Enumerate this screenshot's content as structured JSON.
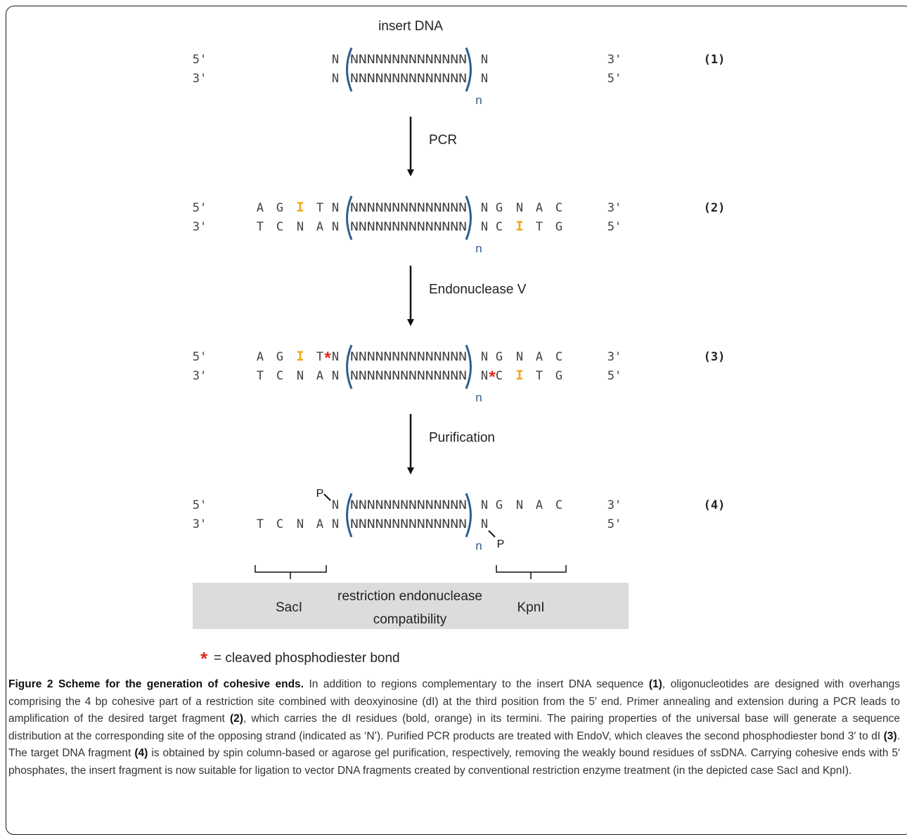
{
  "figure": {
    "title_top": "insert DNA",
    "end_labels": {
      "five_prime": "5'",
      "three_prime": "3'"
    },
    "stages": [
      {
        "label": "(1)",
        "top_strand": {
          "left": [],
          "cut_after_left": false,
          "flank": "N",
          "core": "NNNNNNNNNNNNNN",
          "right_flank": "N",
          "cut_before_right": false,
          "right": []
        },
        "bottom_strand": {
          "left": [],
          "cut_after_left": false,
          "flank": "N",
          "core": "NNNNNNNNNNNNNN",
          "right_flank": "N",
          "cut_before_right": false,
          "right": []
        }
      },
      {
        "label": "(2)",
        "top_strand": {
          "left": [
            "A",
            "G",
            "I",
            "T"
          ],
          "cut_after_left": false,
          "flank": "N",
          "core": "NNNNNNNNNNNNNN",
          "right_flank": "N",
          "cut_before_right": false,
          "right": [
            "G",
            "N",
            "A",
            "C"
          ]
        },
        "bottom_strand": {
          "left": [
            "T",
            "C",
            "N",
            "A"
          ],
          "cut_after_left": false,
          "flank": "N",
          "core": "NNNNNNNNNNNNNN",
          "right_flank": "N",
          "cut_before_right": false,
          "right": [
            "C",
            "I",
            "T",
            "G"
          ]
        }
      },
      {
        "label": "(3)",
        "top_strand": {
          "left": [
            "A",
            "G",
            "I",
            "T"
          ],
          "cut_after_left": true,
          "flank": "N",
          "core": "NNNNNNNNNNNNNN",
          "right_flank": "N",
          "cut_before_right": false,
          "right": [
            "G",
            "N",
            "A",
            "C"
          ]
        },
        "bottom_strand": {
          "left": [
            "T",
            "C",
            "N",
            "A"
          ],
          "cut_after_left": false,
          "flank": "N",
          "core": "NNNNNNNNNNNNNN",
          "right_flank": "N",
          "cut_before_right": true,
          "right": [
            "C",
            "I",
            "T",
            "G"
          ]
        }
      },
      {
        "label": "(4)",
        "top_strand": {
          "left": [],
          "cut_after_left": false,
          "flank": "N",
          "core": "NNNNNNNNNNNNNN",
          "right_flank": "N",
          "cut_before_right": false,
          "right": [
            "G",
            "N",
            "A",
            "C"
          ],
          "phosphate": "P"
        },
        "bottom_strand": {
          "left": [
            "T",
            "C",
            "N",
            "A"
          ],
          "cut_after_left": false,
          "flank": "N",
          "core": "NNNNNNNNNNNNNN",
          "right_flank": "N",
          "cut_before_right": false,
          "right": [],
          "phosphate": "P"
        }
      }
    ],
    "repeat_subscript": "n",
    "steps": [
      "PCR",
      "Endonuclease V",
      "Purification"
    ],
    "compatibility_box": {
      "left": "SacI",
      "center_line1": "restriction endonuclease",
      "center_line2": "compatibility",
      "right": "KpnI"
    },
    "legend": {
      "symbol": "*",
      "text": "= cleaved phosphodiester bond"
    },
    "colors": {
      "bracket": "#2e5d8e",
      "inosine": "#f0a820",
      "asterisk": "#e0271c",
      "box_fill": "#dcdcdc",
      "text": "#333333",
      "sequence": "#444444"
    }
  },
  "caption": {
    "title": "Figure 2 Scheme for the generation of cohesive ends.",
    "s1": " In addition to regions complementary to the insert DNA sequence ",
    "r1": "(1)",
    "s2": ", oligonucleotides are designed with overhangs comprising the 4 bp cohesive part of a restriction site combined with deoxyinosine (dI) at the third position from the 5′ end. Primer annealing and extension during a PCR leads to amplification of the desired target fragment ",
    "r2": "(2)",
    "s3": ", which carries the dI residues (bold, orange) in its termini. The pairing properties of the universal base will generate a sequence distribution at the corresponding site of the opposing strand (indicated as ‘N’). Purified PCR products are treated with EndoV, which cleaves the second phosphodiester bond 3′ to dI ",
    "r3": "(3)",
    "s4": ". The target DNA fragment ",
    "r4": "(4)",
    "s5": " is obtained by spin column-based or agarose gel purification, respectively, removing the weakly bound residues of ssDNA. Carrying cohesive ends with 5′ phosphates, the insert fragment is now suitable for ligation to vector DNA fragments created by conventional restriction enzyme treatment (in the depicted case SacI and KpnI)."
  }
}
